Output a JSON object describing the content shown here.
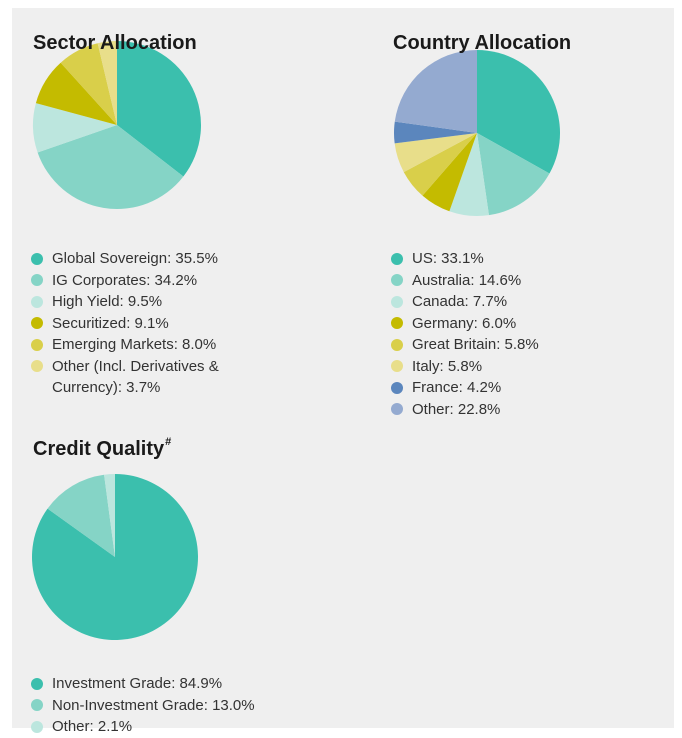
{
  "chart_data": [
    {
      "type": "pie",
      "title": "Sector Allocation",
      "categories": [
        "Global Sovereign: 35.5%",
        "IG Corporates: 34.2%",
        "High Yield: 9.5%",
        "Securitized: 9.1%",
        "Emerging Markets: 8.0%",
        "Other (Incl. Derivatives & Currency): 3.7%"
      ],
      "values": [
        35.5,
        34.2,
        9.5,
        9.1,
        8.0,
        3.7
      ],
      "colors": [
        "#3bbfad",
        "#85d4c6",
        "#bce6de",
        "#c4bb00",
        "#d9cf4a",
        "#e8de8a"
      ]
    },
    {
      "type": "pie",
      "title": "Country Allocation",
      "categories": [
        "US: 33.1%",
        "Australia: 14.6%",
        "Canada: 7.7%",
        "Germany: 6.0%",
        "Great Britain: 5.8%",
        "Italy: 5.8%",
        "France: 4.2%",
        "Other: 22.8%"
      ],
      "values": [
        33.1,
        14.6,
        7.7,
        6.0,
        5.8,
        5.8,
        4.2,
        22.8
      ],
      "colors": [
        "#3bbfad",
        "#85d4c6",
        "#bce6de",
        "#c4bb00",
        "#d9cf4a",
        "#e8de8a",
        "#5b86bd",
        "#94aad0"
      ]
    },
    {
      "type": "pie",
      "title": "Credit Quality",
      "title_superscript": "#",
      "categories": [
        "Investment Grade: 84.9%",
        "Non-Investment Grade: 13.0%",
        "Other: 2.1%"
      ],
      "values": [
        84.9,
        13.0,
        2.1
      ],
      "colors": [
        "#3bbfad",
        "#85d4c6",
        "#bce6de"
      ]
    }
  ]
}
